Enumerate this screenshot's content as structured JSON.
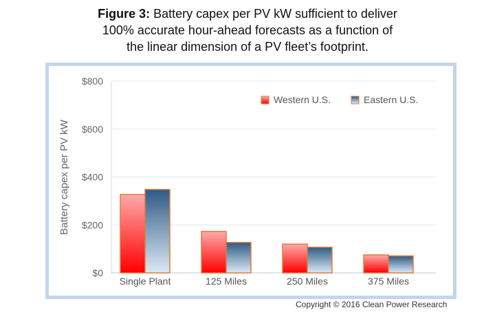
{
  "title": {
    "lead": "Figure 3:",
    "line1": " Battery capex per PV kW sufficient to deliver",
    "line2": "100% accurate hour-ahead forecasts as a function of",
    "line3": "the linear dimension of a PV fleet’s footprint."
  },
  "copyright": "Copyright © 2016 Clean Power Research",
  "chart_data": {
    "type": "bar",
    "title": "Figure 3: Battery capex per PV kW sufficient to deliver 100% accurate hour-ahead forecasts as a function of the linear dimension of a PV fleet’s footprint.",
    "categories": [
      "Single Plant",
      "125 Miles",
      "250 Miles",
      "375 Miles"
    ],
    "series": [
      {
        "name": "Western U.S.",
        "values": [
          327,
          173,
          120,
          75
        ]
      },
      {
        "name": "Eastern U.S.",
        "values": [
          348,
          127,
          107,
          71
        ]
      }
    ],
    "xlabel": "",
    "ylabel": "Battery capex per PV kW",
    "ylim": [
      0,
      800
    ],
    "yticks": [
      0,
      200,
      400,
      600,
      800
    ],
    "ytick_labels": [
      "$0",
      "$200",
      "$400",
      "$600",
      "$800"
    ],
    "grid": true,
    "legend": "top-right",
    "colors": {
      "western_top": "#ffaaaa",
      "western_bottom": "#ff0000",
      "eastern_top": "#2f5a85",
      "eastern_bottom": "#dce9f5",
      "bar_border": "#e07b39"
    }
  }
}
